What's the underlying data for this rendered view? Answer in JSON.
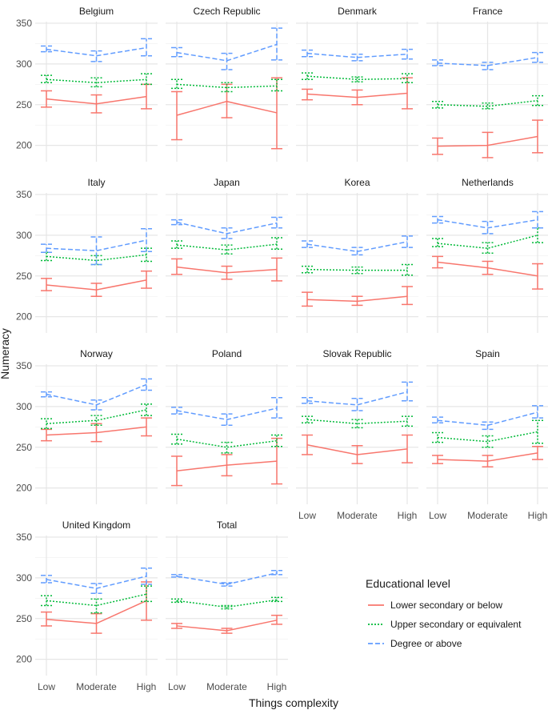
{
  "chart_data": {
    "type": "line",
    "xlabel": "Things complexity",
    "ylabel": "Numeracy",
    "categories": [
      "Low",
      "Moderate",
      "High"
    ],
    "yticks": [
      200,
      250,
      300,
      350
    ],
    "ylim": [
      180,
      352
    ],
    "legend": {
      "title": "Educational level",
      "position": "bottom-right",
      "entries": [
        "Lower secondary or below",
        "Upper secondary or equivalent",
        "Degree or above"
      ]
    },
    "series_styles": [
      {
        "name": "Lower secondary or below",
        "color": "#F8766D",
        "dash": "solid"
      },
      {
        "name": "Upper secondary or equivalent",
        "color": "#00BA38",
        "dash": "dotted"
      },
      {
        "name": "Degree or above",
        "color": "#619CFF",
        "dash": "dashed"
      }
    ],
    "panels": [
      {
        "title": "Belgium",
        "series": [
          {
            "name": "Lower secondary or below",
            "values": [
              257,
              251,
              260
            ],
            "lower": [
              247,
              240,
              245
            ],
            "upper": [
              267,
              262,
              275
            ]
          },
          {
            "name": "Upper secondary or equivalent",
            "values": [
              281,
              277,
              281
            ],
            "lower": [
              277,
              272,
              275
            ],
            "upper": [
              286,
              283,
              288
            ]
          },
          {
            "name": "Degree or above",
            "values": [
              318,
              310,
              320
            ],
            "lower": [
              315,
              303,
              310
            ],
            "upper": [
              322,
              316,
              331
            ]
          }
        ]
      },
      {
        "title": "Czech Republic",
        "series": [
          {
            "name": "Lower secondary or below",
            "values": [
              237,
              254,
              240
            ],
            "lower": [
              207,
              234,
              196
            ],
            "upper": [
              266,
              275,
              283
            ]
          },
          {
            "name": "Upper secondary or equivalent",
            "values": [
              275,
              271,
              273
            ],
            "lower": [
              270,
              266,
              267
            ],
            "upper": [
              281,
              277,
              281
            ]
          },
          {
            "name": "Degree or above",
            "values": [
              314,
              304,
              324
            ],
            "lower": [
              309,
              293,
              305
            ],
            "upper": [
              320,
              313,
              344
            ]
          }
        ]
      },
      {
        "title": "Denmark",
        "series": [
          {
            "name": "Lower secondary or below",
            "values": [
              263,
              259,
              264
            ],
            "lower": [
              256,
              250,
              245
            ],
            "upper": [
              269,
              268,
              283
            ]
          },
          {
            "name": "Upper secondary or equivalent",
            "values": [
              285,
              281,
              282
            ],
            "lower": [
              281,
              278,
              277
            ],
            "upper": [
              289,
              284,
              288
            ]
          },
          {
            "name": "Degree or above",
            "values": [
              313,
              308,
              312
            ],
            "lower": [
              309,
              304,
              306
            ],
            "upper": [
              317,
              312,
              318
            ]
          }
        ]
      },
      {
        "title": "France",
        "series": [
          {
            "name": "Lower secondary or below",
            "values": [
              199,
              200,
              211
            ],
            "lower": [
              189,
              185,
              191
            ],
            "upper": [
              209,
              216,
              231
            ]
          },
          {
            "name": "Upper secondary or equivalent",
            "values": [
              250,
              248,
              255
            ],
            "lower": [
              246,
              245,
              249
            ],
            "upper": [
              254,
              252,
              261
            ]
          },
          {
            "name": "Degree or above",
            "values": [
              301,
              298,
              308
            ],
            "lower": [
              298,
              293,
              302
            ],
            "upper": [
              305,
              302,
              314
            ]
          }
        ]
      },
      {
        "title": "Italy",
        "series": [
          {
            "name": "Lower secondary or below",
            "values": [
              239,
              233,
              245
            ],
            "lower": [
              232,
              225,
              235
            ],
            "upper": [
              247,
              241,
              256
            ]
          },
          {
            "name": "Upper secondary or equivalent",
            "values": [
              274,
              269,
              276
            ],
            "lower": [
              269,
              264,
              268
            ],
            "upper": [
              279,
              275,
              284
            ]
          },
          {
            "name": "Degree or above",
            "values": [
              284,
              281,
              294
            ],
            "lower": [
              279,
              264,
              280
            ],
            "upper": [
              289,
              298,
              308
            ]
          }
        ]
      },
      {
        "title": "Japan",
        "series": [
          {
            "name": "Lower secondary or below",
            "values": [
              261,
              254,
              258
            ],
            "lower": [
              252,
              246,
              244
            ],
            "upper": [
              271,
              262,
              272
            ]
          },
          {
            "name": "Upper secondary or equivalent",
            "values": [
              288,
              282,
              289
            ],
            "lower": [
              284,
              277,
              283
            ],
            "upper": [
              293,
              288,
              297
            ]
          },
          {
            "name": "Degree or above",
            "values": [
              316,
              302,
              315
            ],
            "lower": [
              313,
              296,
              309
            ],
            "upper": [
              319,
              309,
              322
            ]
          }
        ]
      },
      {
        "title": "Korea",
        "series": [
          {
            "name": "Lower secondary or below",
            "values": [
              221,
              219,
              225
            ],
            "lower": [
              213,
              214,
              215
            ],
            "upper": [
              230,
              225,
              237
            ]
          },
          {
            "name": "Upper secondary or equivalent",
            "values": [
              258,
              257,
              257
            ],
            "lower": [
              254,
              253,
              251
            ],
            "upper": [
              262,
              261,
              264
            ]
          },
          {
            "name": "Degree or above",
            "values": [
              289,
              280,
              292
            ],
            "lower": [
              285,
              276,
              285
            ],
            "upper": [
              293,
              285,
              299
            ]
          }
        ]
      },
      {
        "title": "Netherlands",
        "series": [
          {
            "name": "Lower secondary or below",
            "values": [
              267,
              260,
              250
            ],
            "lower": [
              260,
              252,
              234
            ],
            "upper": [
              274,
              268,
              265
            ]
          },
          {
            "name": "Upper secondary or equivalent",
            "values": [
              290,
              284,
              300
            ],
            "lower": [
              286,
              278,
              291
            ],
            "upper": [
              296,
              291,
              309
            ]
          },
          {
            "name": "Degree or above",
            "values": [
              319,
              309,
              319
            ],
            "lower": [
              315,
              302,
              309
            ],
            "upper": [
              323,
              317,
              329
            ]
          }
        ]
      },
      {
        "title": "Norway",
        "series": [
          {
            "name": "Lower secondary or below",
            "values": [
              265,
              268,
              275
            ],
            "lower": [
              258,
              257,
              264
            ],
            "upper": [
              272,
              279,
              286
            ]
          },
          {
            "name": "Upper secondary or equivalent",
            "values": [
              279,
              283,
              296
            ],
            "lower": [
              273,
              277,
              289
            ],
            "upper": [
              285,
              289,
              303
            ]
          },
          {
            "name": "Degree or above",
            "values": [
              315,
              302,
              327
            ],
            "lower": [
              312,
              296,
              320
            ],
            "upper": [
              318,
              308,
              334
            ]
          }
        ]
      },
      {
        "title": "Poland",
        "series": [
          {
            "name": "Lower secondary or below",
            "values": [
              221,
              228,
              233
            ],
            "lower": [
              203,
              215,
              205
            ],
            "upper": [
              239,
              241,
              261
            ]
          },
          {
            "name": "Upper secondary or equivalent",
            "values": [
              260,
              250,
              258
            ],
            "lower": [
              254,
              243,
              251
            ],
            "upper": [
              266,
              256,
              265
            ]
          },
          {
            "name": "Degree or above",
            "values": [
              295,
              284,
              298
            ],
            "lower": [
              291,
              277,
              286
            ],
            "upper": [
              299,
              291,
              311
            ]
          }
        ]
      },
      {
        "title": "Slovak Republic",
        "series": [
          {
            "name": "Lower secondary or below",
            "values": [
              253,
              241,
              248
            ],
            "lower": [
              241,
              230,
              231
            ],
            "upper": [
              265,
              252,
              265
            ]
          },
          {
            "name": "Upper secondary or equivalent",
            "values": [
              284,
              279,
              282
            ],
            "lower": [
              280,
              274,
              276
            ],
            "upper": [
              288,
              284,
              288
            ]
          },
          {
            "name": "Degree or above",
            "values": [
              307,
              302,
              318
            ],
            "lower": [
              304,
              295,
              307
            ],
            "upper": [
              311,
              310,
              330
            ]
          }
        ]
      },
      {
        "title": "Spain",
        "series": [
          {
            "name": "Lower secondary or below",
            "values": [
              235,
              233,
              243
            ],
            "lower": [
              230,
              226,
              235
            ],
            "upper": [
              240,
              240,
              251
            ]
          },
          {
            "name": "Upper secondary or equivalent",
            "values": [
              262,
              257,
              269
            ],
            "lower": [
              256,
              250,
              255
            ],
            "upper": [
              268,
              264,
              283
            ]
          },
          {
            "name": "Degree or above",
            "values": [
              283,
              277,
              293
            ],
            "lower": [
              280,
              272,
              286
            ],
            "upper": [
              287,
              281,
              301
            ]
          }
        ]
      },
      {
        "title": "United Kingdom",
        "series": [
          {
            "name": "Lower secondary or below",
            "values": [
              249,
              244,
              272
            ],
            "lower": [
              241,
              232,
              248
            ],
            "upper": [
              258,
              256,
              295
            ]
          },
          {
            "name": "Upper secondary or equivalent",
            "values": [
              272,
              266,
              280
            ],
            "lower": [
              266,
              257,
              271
            ],
            "upper": [
              278,
              274,
              290
            ]
          },
          {
            "name": "Degree or above",
            "values": [
              298,
              287,
              302
            ],
            "lower": [
              294,
              281,
              292
            ],
            "upper": [
              303,
              293,
              312
            ]
          }
        ]
      },
      {
        "title": "Total",
        "series": [
          {
            "name": "Lower secondary or below",
            "values": [
              241,
              235,
              248
            ],
            "lower": [
              238,
              232,
              243
            ],
            "upper": [
              244,
              238,
              254
            ]
          },
          {
            "name": "Upper secondary or equivalent",
            "values": [
              272,
              264,
              273
            ],
            "lower": [
              270,
              262,
              271
            ],
            "upper": [
              274,
              266,
              276
            ]
          },
          {
            "name": "Degree or above",
            "values": [
              302,
              292,
              306
            ],
            "lower": [
              301,
              290,
              304
            ],
            "upper": [
              304,
              294,
              309
            ]
          }
        ]
      }
    ]
  }
}
